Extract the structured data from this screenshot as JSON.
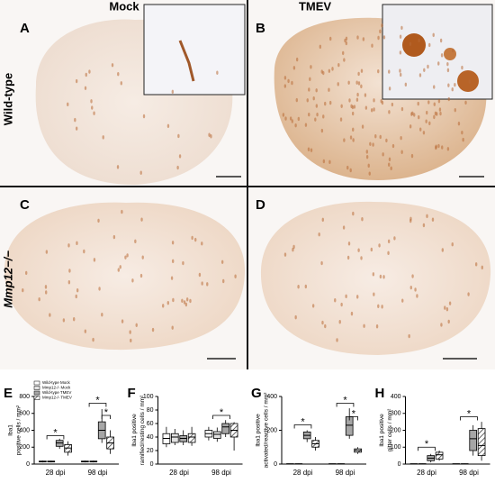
{
  "labels": {
    "columns": [
      "Mock",
      "TMEV"
    ],
    "rows": [
      "Wild-type",
      "Mmp12−/−"
    ],
    "panels": [
      "A",
      "B",
      "C",
      "D"
    ]
  },
  "colors": [
    "#ffffff",
    "#e2e2e2",
    "#a6a6a6",
    "#6f6f6f"
  ],
  "chart_data": [
    {
      "type": "box",
      "panel": "E",
      "ylabel": [
        "Iba1",
        "positive cells / mm²"
      ],
      "categories": [
        "28 dpi",
        "98 dpi"
      ],
      "ylim": [
        0,
        800
      ],
      "yticks": [
        0,
        200,
        400,
        600,
        800
      ],
      "annotations": [
        "*",
        "*",
        "*"
      ],
      "series": [
        {
          "name": "Wild-type Mock",
          "values": [
            {
              "min": 20,
              "q1": 25,
              "median": 30,
              "q3": 35,
              "max": 40
            },
            {
              "min": 20,
              "q1": 25,
              "median": 30,
              "q3": 35,
              "max": 40
            }
          ]
        },
        {
          "name": "Mmp12-/- Mock",
          "values": [
            {
              "min": 20,
              "q1": 25,
              "median": 30,
              "q3": 35,
              "max": 40
            },
            {
              "min": 20,
              "q1": 25,
              "median": 30,
              "q3": 35,
              "max": 40
            }
          ]
        },
        {
          "name": "Wild-type TMEV",
          "values": [
            {
              "min": 180,
              "q1": 210,
              "median": 250,
              "q3": 280,
              "max": 300
            },
            {
              "min": 250,
              "q1": 300,
              "median": 400,
              "q3": 500,
              "max": 650
            }
          ]
        },
        {
          "name": "Mmp12-/- TMEV",
          "values": [
            {
              "min": 100,
              "q1": 140,
              "median": 190,
              "q3": 230,
              "max": 270
            },
            {
              "min": 120,
              "q1": 180,
              "median": 250,
              "q3": 320,
              "max": 400
            }
          ]
        }
      ]
    },
    {
      "type": "box",
      "panel": "F",
      "ylabel": [
        "Iba1 positive",
        "ramified/resting cells / mm²"
      ],
      "categories": [
        "28 dpi",
        "98 dpi"
      ],
      "ylim": [
        0,
        100
      ],
      "yticks": [
        0,
        20,
        40,
        60,
        80,
        100
      ],
      "annotations": [
        "*"
      ],
      "series": [
        {
          "values": [
            {
              "min": 25,
              "q1": 30,
              "median": 38,
              "q3": 45,
              "max": 55
            },
            {
              "min": 35,
              "q1": 40,
              "median": 45,
              "q3": 50,
              "max": 55
            }
          ]
        },
        {
          "values": [
            {
              "min": 28,
              "q1": 32,
              "median": 40,
              "q3": 45,
              "max": 52
            },
            {
              "min": 33,
              "q1": 38,
              "median": 44,
              "q3": 48,
              "max": 54
            }
          ]
        },
        {
          "values": [
            {
              "min": 28,
              "q1": 33,
              "median": 38,
              "q3": 42,
              "max": 50
            },
            {
              "min": 40,
              "q1": 45,
              "median": 55,
              "q3": 60,
              "max": 65
            }
          ]
        },
        {
          "values": [
            {
              "min": 27,
              "q1": 32,
              "median": 40,
              "q3": 45,
              "max": 55
            },
            {
              "min": 20,
              "q1": 40,
              "median": 50,
              "q3": 60,
              "max": 62
            }
          ]
        }
      ]
    },
    {
      "type": "box",
      "panel": "G",
      "ylabel": [
        "Iba1 positive",
        "activated/reactive cells / mm²"
      ],
      "categories": [
        "28 dpi",
        "98 dpi"
      ],
      "ylim": [
        0,
        400
      ],
      "yticks": [
        0,
        200,
        400
      ],
      "annotations": [
        "*",
        "*",
        "*"
      ],
      "series": [
        {
          "values": [
            {
              "min": 0,
              "q1": 0,
              "median": 1,
              "q3": 2,
              "max": 3
            },
            {
              "min": 0,
              "q1": 0,
              "median": 1,
              "q3": 2,
              "max": 3
            }
          ]
        },
        {
          "values": [
            {
              "min": 0,
              "q1": 0,
              "median": 1,
              "q3": 2,
              "max": 3
            },
            {
              "min": 0,
              "q1": 0,
              "median": 1,
              "q3": 2,
              "max": 3
            }
          ]
        },
        {
          "values": [
            {
              "min": 130,
              "q1": 150,
              "median": 170,
              "q3": 190,
              "max": 200
            },
            {
              "min": 150,
              "q1": 170,
              "median": 230,
              "q3": 280,
              "max": 330
            }
          ]
        },
        {
          "values": [
            {
              "min": 80,
              "q1": 100,
              "median": 120,
              "q3": 140,
              "max": 160
            },
            {
              "min": 60,
              "q1": 70,
              "median": 80,
              "q3": 90,
              "max": 100
            }
          ]
        }
      ]
    },
    {
      "type": "box",
      "panel": "H",
      "ylabel": [
        "Iba1 positive",
        "gitter cells / mm²"
      ],
      "categories": [
        "28 dpi",
        "98 dpi"
      ],
      "ylim": [
        0,
        400
      ],
      "yticks": [
        0,
        100,
        200,
        300,
        400
      ],
      "annotations": [
        "*",
        "*"
      ],
      "series": [
        {
          "values": [
            {
              "min": 0,
              "q1": 0,
              "median": 1,
              "q3": 2,
              "max": 3
            },
            {
              "min": 0,
              "q1": 0,
              "median": 1,
              "q3": 2,
              "max": 3
            }
          ]
        },
        {
          "values": [
            {
              "min": 0,
              "q1": 0,
              "median": 1,
              "q3": 2,
              "max": 3
            },
            {
              "min": 0,
              "q1": 0,
              "median": 1,
              "q3": 2,
              "max": 3
            }
          ]
        },
        {
          "values": [
            {
              "min": 10,
              "q1": 20,
              "median": 35,
              "q3": 50,
              "max": 60
            },
            {
              "min": 50,
              "q1": 80,
              "median": 150,
              "q3": 200,
              "max": 230
            }
          ]
        },
        {
          "values": [
            {
              "min": 20,
              "q1": 30,
              "median": 55,
              "q3": 70,
              "max": 80
            },
            {
              "min": 20,
              "q1": 50,
              "median": 110,
              "q3": 210,
              "max": 250
            }
          ]
        }
      ]
    }
  ]
}
